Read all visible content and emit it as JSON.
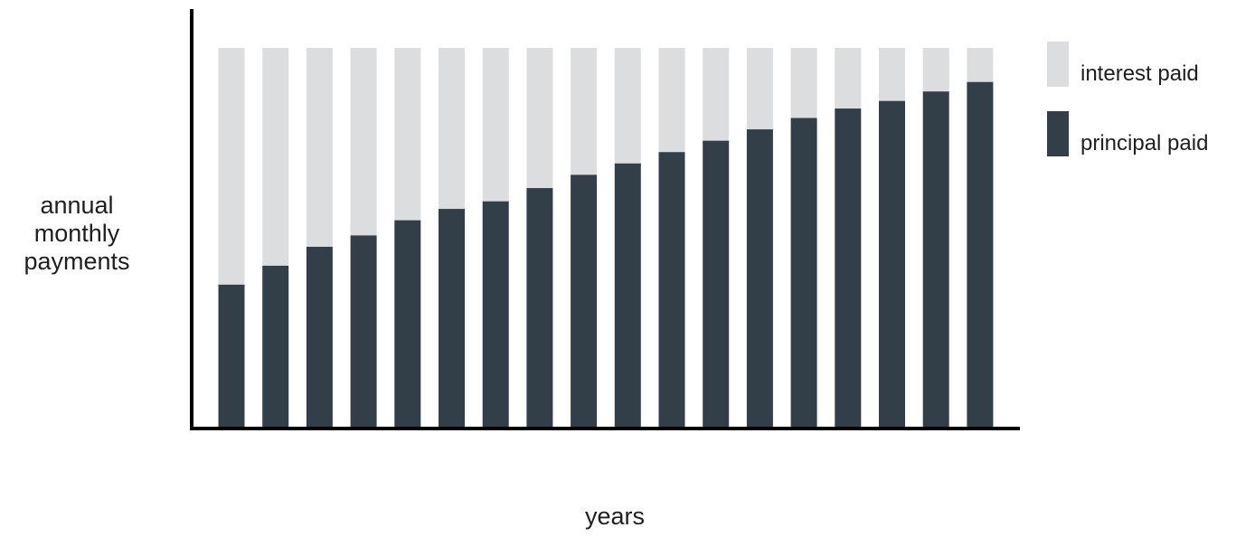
{
  "chart_data": {
    "type": "bar",
    "stacked": true,
    "xlabel": "years",
    "ylabel": "annual\nmonthly\npayments",
    "colors": {
      "principal": "#333f48",
      "interest": "#dcdddf"
    },
    "legend": {
      "placement": "right"
    },
    "grid": false,
    "ylim": [
      0,
      100
    ],
    "series": [
      {
        "name": "principal paid",
        "values": [
          37.5,
          42.5,
          47.5,
          50.5,
          54.5,
          57.5,
          59.5,
          63.0,
          66.5,
          69.5,
          72.5,
          75.5,
          78.5,
          81.5,
          84.0,
          86.0,
          88.5,
          91.0
        ]
      },
      {
        "name": "interest paid",
        "values": [
          62.5,
          57.5,
          52.5,
          49.5,
          45.5,
          42.5,
          40.5,
          37.0,
          33.5,
          30.5,
          27.5,
          24.5,
          21.5,
          18.5,
          16.0,
          14.0,
          11.5,
          9.0
        ]
      }
    ],
    "legend_entries": [
      "interest paid",
      "principal paid"
    ]
  }
}
